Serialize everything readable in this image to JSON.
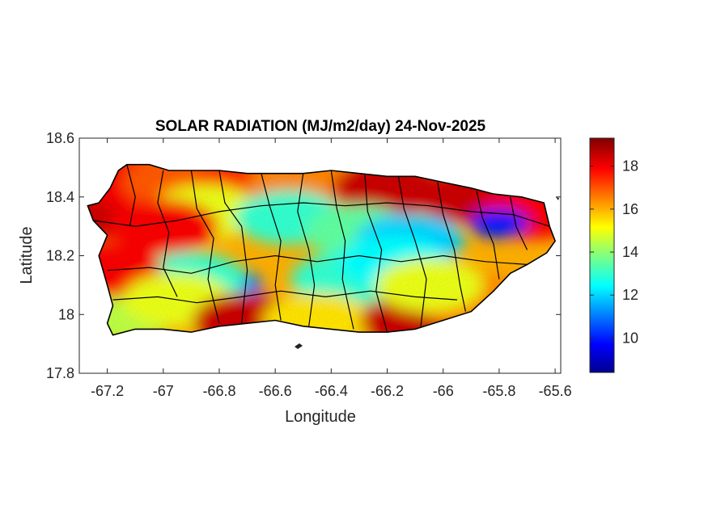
{
  "title": "SOLAR RADIATION (MJ/m2/day) 24-Nov-2025",
  "xlabel": "Longitude",
  "ylabel": "Latitude",
  "axes": {
    "xlim": [
      -67.3,
      -65.58
    ],
    "ylim": [
      17.8,
      18.6
    ],
    "x_ticks": [
      {
        "value": -67.2,
        "label": "-67.2"
      },
      {
        "value": -67.0,
        "label": "-67"
      },
      {
        "value": -66.8,
        "label": "-66.8"
      },
      {
        "value": -66.6,
        "label": "-66.6"
      },
      {
        "value": -66.4,
        "label": "-66.4"
      },
      {
        "value": -66.2,
        "label": "-66.2"
      },
      {
        "value": -66.0,
        "label": "-66"
      },
      {
        "value": -65.8,
        "label": "-65.8"
      },
      {
        "value": -65.6,
        "label": "-65.6"
      }
    ],
    "y_ticks": [
      {
        "value": 17.8,
        "label": "17.8"
      },
      {
        "value": 18.0,
        "label": "18"
      },
      {
        "value": 18.2,
        "label": "18.2"
      },
      {
        "value": 18.4,
        "label": "18.4"
      },
      {
        "value": 18.6,
        "label": "18.6"
      }
    ]
  },
  "colorbar": {
    "colormap": "jet",
    "range": [
      8.4,
      19.3
    ],
    "ticks": [
      {
        "value": 10,
        "label": "10"
      },
      {
        "value": 12,
        "label": "12"
      },
      {
        "value": 14,
        "label": "14"
      },
      {
        "value": 16,
        "label": "16"
      },
      {
        "value": 18,
        "label": "18"
      }
    ]
  },
  "chart_data": {
    "type": "heatmap",
    "title": "SOLAR RADIATION (MJ/m2/day) 24-Nov-2025",
    "xlabel": "Longitude",
    "ylabel": "Latitude",
    "xlim": [
      -67.3,
      -65.58
    ],
    "ylim": [
      17.8,
      18.6
    ],
    "grid": false,
    "units": "MJ/m2/day",
    "value_range": [
      8.4,
      19.3
    ],
    "field_points": [
      {
        "lon": -67.2,
        "lat": 18.35,
        "value": 18.5
      },
      {
        "lon": -67.1,
        "lat": 18.45,
        "value": 18.0
      },
      {
        "lon": -66.95,
        "lat": 18.45,
        "value": 17.0
      },
      {
        "lon": -66.7,
        "lat": 18.45,
        "value": 17.5
      },
      {
        "lon": -66.5,
        "lat": 18.45,
        "value": 16.5
      },
      {
        "lon": -66.2,
        "lat": 18.43,
        "value": 18.5
      },
      {
        "lon": -65.9,
        "lat": 18.4,
        "value": 18.5
      },
      {
        "lon": -65.68,
        "lat": 18.35,
        "value": 18.0
      },
      {
        "lon": -66.85,
        "lat": 18.35,
        "value": 15.0
      },
      {
        "lon": -66.55,
        "lat": 18.33,
        "value": 13.0
      },
      {
        "lon": -66.3,
        "lat": 18.28,
        "value": 13.5
      },
      {
        "lon": -66.12,
        "lat": 18.25,
        "value": 12.0
      },
      {
        "lon": -65.8,
        "lat": 18.31,
        "value": 10.0
      },
      {
        "lon": -66.75,
        "lat": 18.1,
        "value": 11.0
      },
      {
        "lon": -66.9,
        "lat": 18.12,
        "value": 13.0
      },
      {
        "lon": -66.35,
        "lat": 18.12,
        "value": 13.0
      },
      {
        "lon": -66.18,
        "lat": 18.18,
        "value": 12.5
      },
      {
        "lon": -67.15,
        "lat": 18.0,
        "value": 14.5
      },
      {
        "lon": -67.2,
        "lat": 18.15,
        "value": 18.0
      },
      {
        "lon": -66.95,
        "lat": 18.05,
        "value": 15.0
      },
      {
        "lon": -66.7,
        "lat": 17.98,
        "value": 18.5
      },
      {
        "lon": -66.45,
        "lat": 17.98,
        "value": 15.5
      },
      {
        "lon": -66.1,
        "lat": 17.98,
        "value": 18.5
      },
      {
        "lon": -65.9,
        "lat": 18.05,
        "value": 16.5
      },
      {
        "lon": -66.05,
        "lat": 18.1,
        "value": 15.0
      },
      {
        "lon": -67.0,
        "lat": 18.3,
        "value": 18.0
      }
    ]
  },
  "map": {
    "region": "Puerto Rico",
    "boundaries": "municipalities",
    "boundary_color": "#000000",
    "outside_color": "#ffffff"
  }
}
